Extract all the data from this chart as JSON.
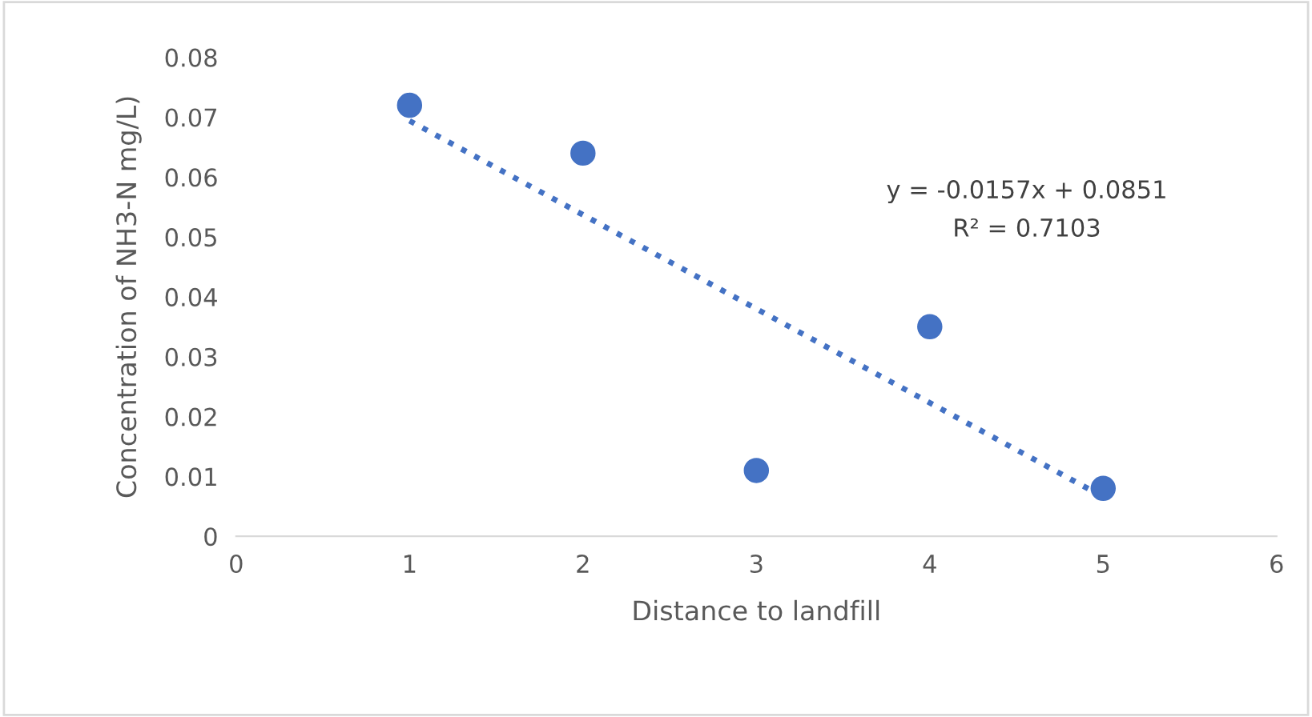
{
  "chart_data": {
    "type": "scatter",
    "xlabel": "Distance to landfill",
    "ylabel": "Concentration of NH3-N mg/L)",
    "xlim": [
      0,
      6
    ],
    "xticks": [
      0,
      1,
      2,
      3,
      4,
      5,
      6
    ],
    "ylim": [
      0,
      0.08
    ],
    "yticks": [
      0,
      0.01,
      0.02,
      0.03,
      0.04,
      0.05,
      0.06,
      0.07,
      0.08
    ],
    "grid": false,
    "legend": false,
    "marker": "circle",
    "series": [
      {
        "color": "#4472c4",
        "x": [
          1,
          2,
          3,
          4,
          5
        ],
        "values": [
          0.072,
          0.064,
          0.011,
          0.035,
          0.008
        ]
      },
      {
        "type": "line",
        "color": "#4472c4",
        "line_style": "dotted",
        "marker": "none",
        "x": [
          1,
          5
        ],
        "values": [
          0.0694,
          0.0066
        ]
      }
    ],
    "annotations": [
      "y = -0.0157x + 0.0851",
      "R² = 0.7103"
    ]
  }
}
